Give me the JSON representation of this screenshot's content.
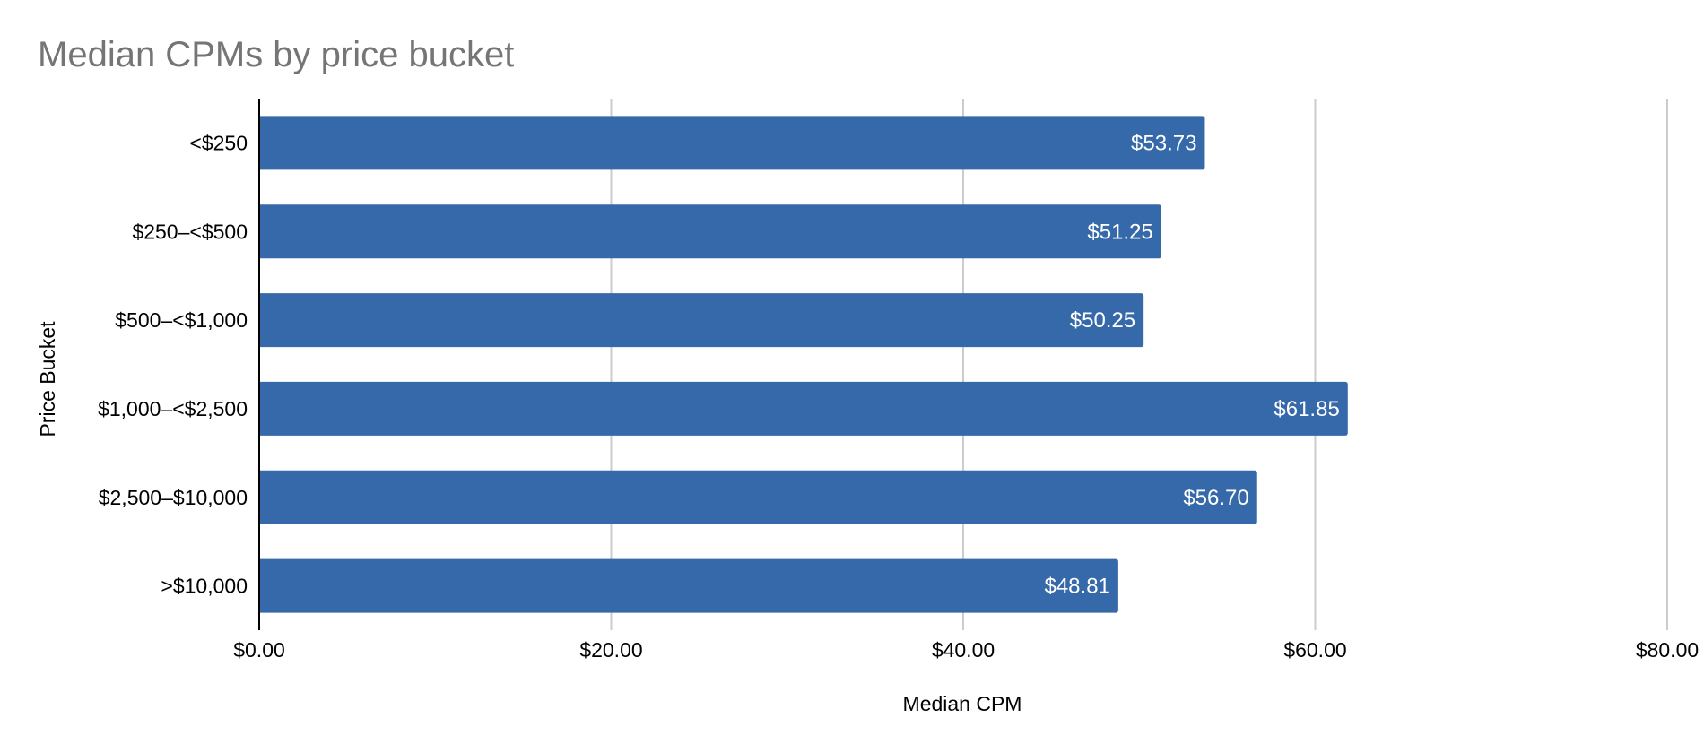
{
  "chart_data": {
    "type": "bar",
    "orientation": "horizontal",
    "title": "Median CPMs by price bucket",
    "xlabel": "Median CPM",
    "ylabel": "Price Bucket",
    "categories": [
      "<$250",
      "$250–<$500",
      "$500–<$1,000",
      "$1,000–<$2,500",
      "$2,500–$10,000",
      ">$10,000"
    ],
    "values": [
      53.73,
      51.25,
      50.25,
      61.85,
      56.7,
      48.81
    ],
    "data_labels": [
      "$53.73",
      "$51.25",
      "$50.25",
      "$61.85",
      "$56.70",
      "$48.81"
    ],
    "xlim": [
      0,
      80
    ],
    "x_ticks": [
      0,
      20,
      40,
      60,
      80
    ],
    "x_tick_labels": [
      "$0.00",
      "$20.00",
      "$40.00",
      "$60.00",
      "$80.00"
    ],
    "grid": true,
    "legend": "none",
    "bar_color": "#3669a9"
  }
}
